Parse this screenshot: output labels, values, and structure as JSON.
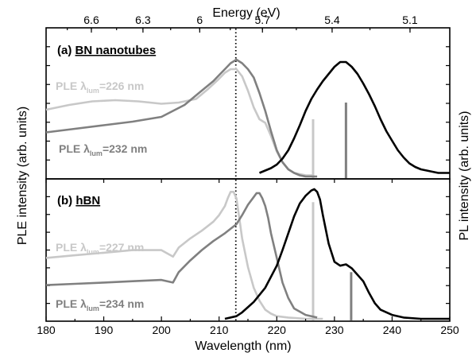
{
  "chart_data": [
    {
      "type": "line",
      "panel_label": "(a)",
      "title": "BN nanotubes",
      "xlabel": "Wavelength (nm)",
      "x2label": "Energy (eV)",
      "ylabel_left": "PLE intensity (arb. units)",
      "ylabel_right": "PL intensity (arb. units)",
      "xlim": [
        180,
        250
      ],
      "ylim": [
        0,
        1
      ],
      "grid": false,
      "x_ticks": [
        "180",
        "190",
        "200",
        "210",
        "220",
        "230",
        "240",
        "250"
      ],
      "x2_ticks": [
        "6.6",
        "6.3",
        "6",
        "5.7",
        "5.4",
        "5.1"
      ],
      "annotations": [
        {
          "text": "PLE λlum=226 nm",
          "prefix": "PLE ",
          "symbol": "λ",
          "sub": "lum",
          "suffix": "=226 nm",
          "color": "#c8c8c8"
        },
        {
          "text": "PLE λlum=232 nm",
          "prefix": "PLE ",
          "symbol": "λ",
          "sub": "lum",
          "suffix": "=232 nm",
          "color": "#808080"
        }
      ],
      "vertical_markers": [
        {
          "x": 212.9,
          "style": "dotted",
          "color": "#000000"
        },
        {
          "x": 226.3,
          "style": "solid",
          "color": "#c8c8c8",
          "ymax": 0.48
        },
        {
          "x": 232.0,
          "style": "solid",
          "color": "#808080",
          "ymax": 0.62
        }
      ],
      "series": [
        {
          "color": "#c8c8c8",
          "x": [
            180,
            184,
            188,
            192,
            196,
            200,
            203,
            206,
            208,
            210,
            211,
            212,
            213,
            214,
            215,
            216,
            217,
            218,
            219,
            220,
            221,
            222,
            223,
            224,
            225,
            226,
            226.5
          ],
          "y": [
            0.56,
            0.6,
            0.63,
            0.64,
            0.63,
            0.61,
            0.62,
            0.65,
            0.73,
            0.82,
            0.87,
            0.9,
            0.9,
            0.84,
            0.72,
            0.58,
            0.48,
            0.45,
            0.34,
            0.21,
            0.12,
            0.06,
            0.03,
            0.02,
            0.01,
            0.01,
            0.0
          ]
        },
        {
          "color": "#808080",
          "x": [
            180,
            185,
            190,
            195,
            200,
            204,
            207,
            209,
            210,
            211,
            212,
            213,
            214,
            215,
            216,
            217,
            218,
            219,
            220,
            221,
            222,
            223,
            224,
            225,
            226,
            227
          ],
          "y": [
            0.37,
            0.4,
            0.43,
            0.46,
            0.5,
            0.6,
            0.72,
            0.8,
            0.85,
            0.9,
            0.95,
            0.98,
            0.95,
            0.9,
            0.83,
            0.7,
            0.55,
            0.38,
            0.22,
            0.12,
            0.06,
            0.03,
            0.01,
            0.0,
            0.0,
            0.0
          ]
        },
        {
          "color": "#000000",
          "x": [
            217,
            219,
            220,
            221,
            222,
            223,
            224,
            225,
            226,
            227,
            228,
            229,
            230,
            231,
            232,
            233,
            234,
            235,
            236,
            237,
            238,
            239,
            240,
            241,
            242,
            243,
            244,
            245,
            246,
            247,
            248,
            249,
            250
          ],
          "y": [
            0.03,
            0.07,
            0.1,
            0.15,
            0.22,
            0.32,
            0.43,
            0.55,
            0.65,
            0.73,
            0.8,
            0.86,
            0.92,
            0.96,
            0.96,
            0.92,
            0.86,
            0.78,
            0.69,
            0.59,
            0.48,
            0.38,
            0.3,
            0.22,
            0.16,
            0.11,
            0.08,
            0.06,
            0.05,
            0.04,
            0.03,
            0.03,
            0.03
          ]
        }
      ]
    },
    {
      "type": "line",
      "panel_label": "(b)",
      "title": "hBN",
      "xlim": [
        180,
        250
      ],
      "ylim": [
        0,
        1
      ],
      "grid": false,
      "annotations": [
        {
          "text": "PLE λlum=227 nm",
          "prefix": "PLE ",
          "symbol": "λ",
          "sub": "lum",
          "suffix": "=227 nm",
          "color": "#c8c8c8"
        },
        {
          "text": "PLE λlum=234 nm",
          "prefix": "PLE ",
          "symbol": "λ",
          "sub": "lum",
          "suffix": "=234 nm",
          "color": "#808080"
        }
      ],
      "vertical_markers": [
        {
          "x": 212.9,
          "style": "dotted",
          "color": "#000000"
        },
        {
          "x": 226.3,
          "style": "solid",
          "color": "#c8c8c8",
          "ymax": 0.9
        },
        {
          "x": 232.9,
          "style": "solid",
          "color": "#808080",
          "ymax": 0.36
        }
      ],
      "series": [
        {
          "color": "#c8c8c8",
          "x": [
            180,
            185,
            190,
            195,
            200,
            202,
            203,
            205,
            207,
            209,
            210,
            211,
            211.5,
            212,
            212.5,
            213,
            213.5,
            214,
            215,
            216,
            217,
            218,
            219,
            220,
            222,
            225,
            228
          ],
          "y": [
            0.47,
            0.49,
            0.51,
            0.53,
            0.53,
            0.48,
            0.55,
            0.62,
            0.68,
            0.75,
            0.8,
            0.87,
            0.93,
            0.98,
            0.98,
            0.93,
            0.78,
            0.62,
            0.4,
            0.24,
            0.14,
            0.07,
            0.04,
            0.02,
            0.01,
            0.0,
            0.0
          ]
        },
        {
          "color": "#808080",
          "x": [
            180,
            185,
            190,
            195,
            200,
            202,
            203,
            205,
            207,
            209,
            211,
            213,
            214,
            215,
            216,
            216.5,
            217,
            217.5,
            218,
            218.5,
            219,
            220,
            221,
            222,
            223,
            225,
            227
          ],
          "y": [
            0.26,
            0.27,
            0.28,
            0.29,
            0.3,
            0.28,
            0.36,
            0.45,
            0.53,
            0.6,
            0.66,
            0.73,
            0.8,
            0.88,
            0.94,
            0.97,
            0.97,
            0.93,
            0.87,
            0.78,
            0.66,
            0.47,
            0.28,
            0.16,
            0.08,
            0.03,
            0.01
          ]
        },
        {
          "color": "#000000",
          "x": [
            211,
            213,
            214,
            216,
            218,
            220,
            221,
            222,
            223,
            224,
            225,
            226,
            226.5,
            227,
            227.5,
            228,
            229,
            230,
            231,
            232,
            233,
            234,
            235,
            236,
            237,
            238,
            240,
            242,
            245,
            248,
            250
          ],
          "y": [
            0.0,
            0.02,
            0.05,
            0.13,
            0.24,
            0.41,
            0.53,
            0.66,
            0.79,
            0.89,
            0.95,
            0.99,
            1.0,
            0.98,
            0.92,
            0.8,
            0.58,
            0.44,
            0.41,
            0.42,
            0.39,
            0.34,
            0.29,
            0.2,
            0.12,
            0.07,
            0.03,
            0.01,
            0.0,
            0.0,
            0.0
          ]
        }
      ]
    }
  ]
}
